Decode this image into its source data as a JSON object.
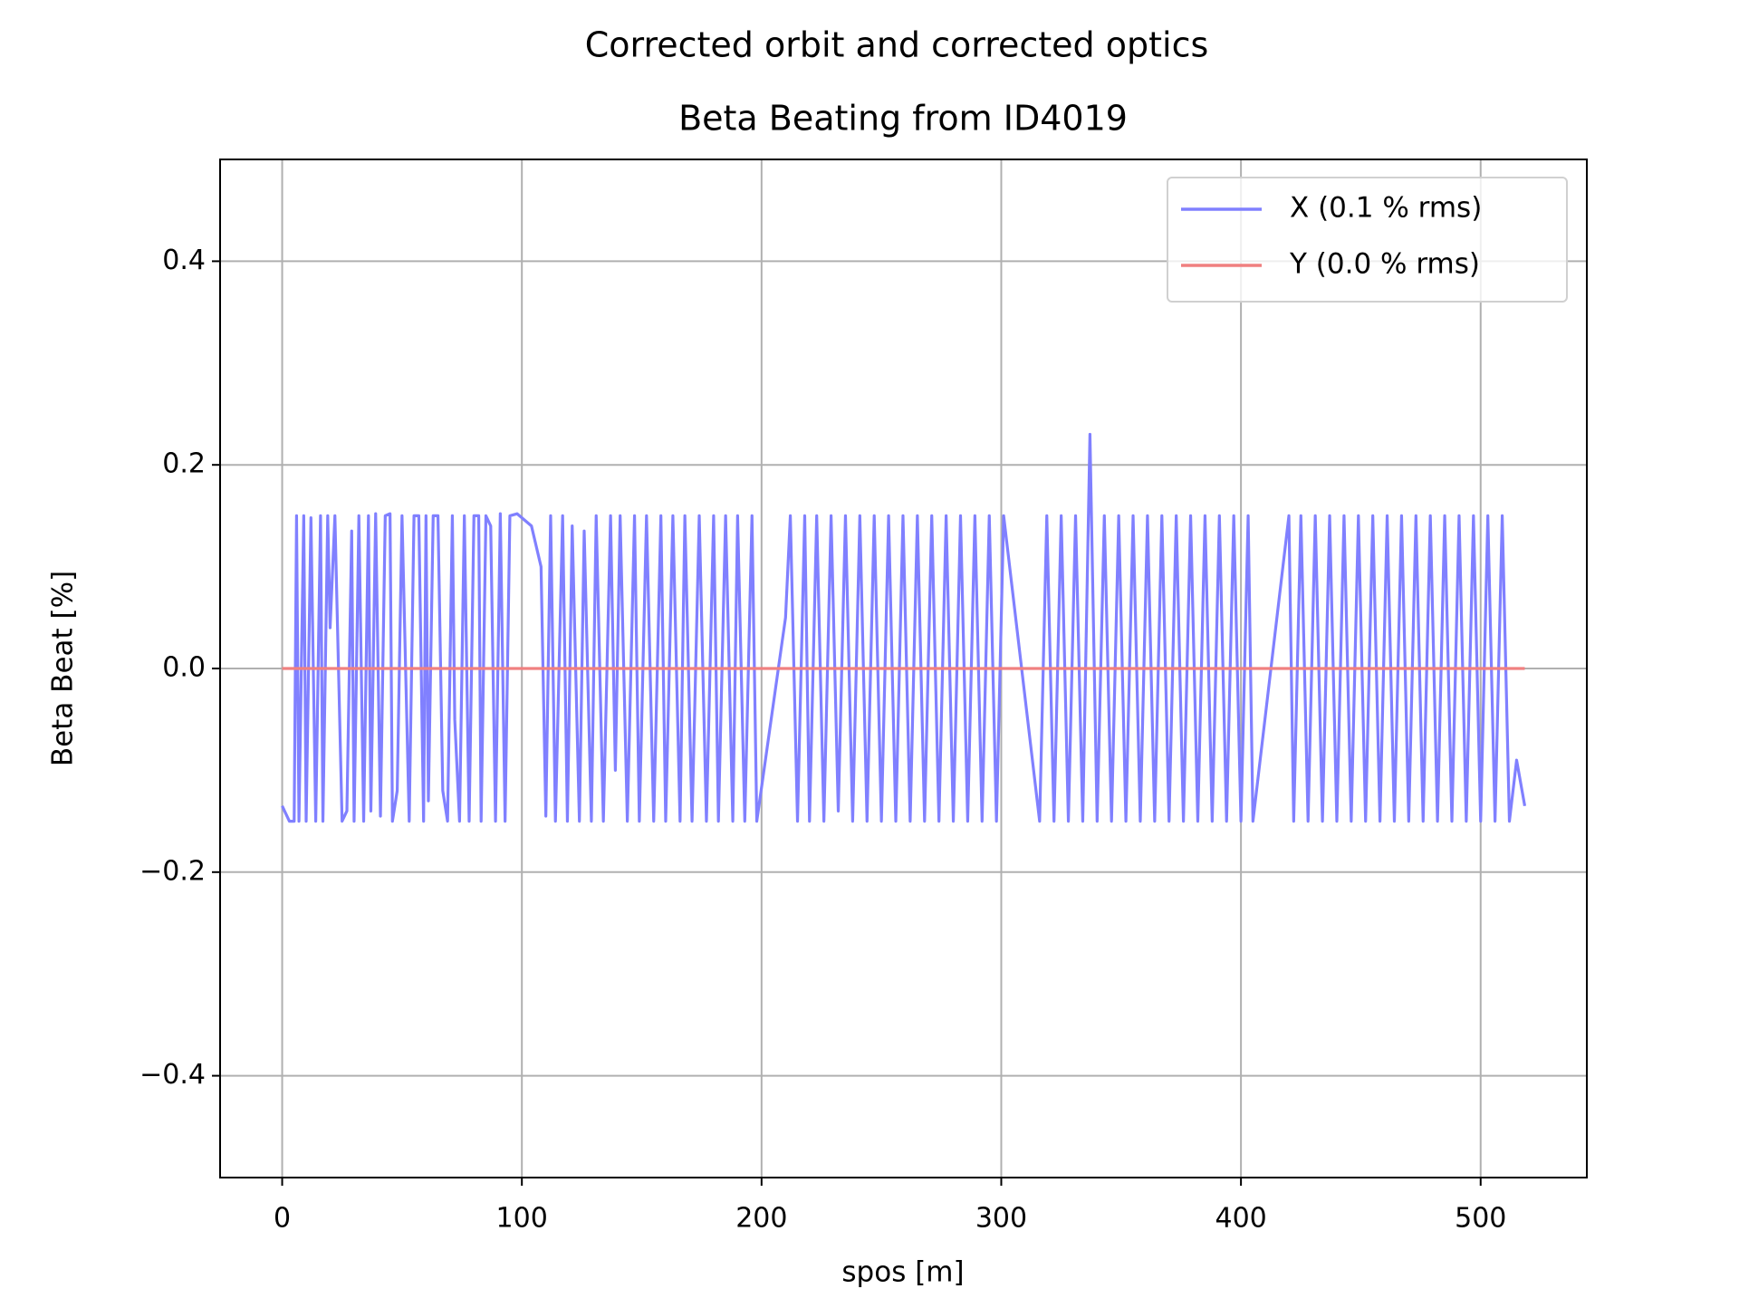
{
  "chart_data": {
    "type": "line",
    "title": "Corrected orbit and corrected optics",
    "subtitle": "Beta Beating from ID4019",
    "x_label": "spos [m]",
    "y_label": "Beta Beat [%]",
    "xlim": [
      -25.9,
      544.3
    ],
    "ylim": [
      -0.5,
      0.5
    ],
    "xticks": [
      0,
      100,
      200,
      300,
      400,
      500
    ],
    "yticks": [
      {
        "value": -0.4,
        "label": "−0.4"
      },
      {
        "value": -0.2,
        "label": "−0.2"
      },
      {
        "value": 0,
        "label": "0.0"
      },
      0.2,
      0.4
    ],
    "grid": true,
    "legend": "upper right",
    "series": [
      {
        "name": "X (0.1 % rms)",
        "color": "#8080ff",
        "x": [
          0,
          3,
          5,
          6,
          7,
          9,
          10,
          12,
          14,
          16,
          17,
          19,
          20,
          22,
          25,
          27,
          29,
          30,
          32,
          34,
          36,
          37,
          39,
          41,
          43,
          45,
          46,
          48,
          50,
          53,
          55,
          57,
          59,
          60,
          61,
          63,
          65,
          67,
          69,
          71,
          72,
          74,
          76,
          78,
          80,
          82,
          83,
          85,
          87,
          89,
          91,
          93,
          95,
          98,
          104,
          108,
          110,
          112,
          114,
          117,
          119,
          121,
          124,
          126,
          129,
          131,
          134,
          137,
          139,
          141,
          144,
          147,
          149,
          152,
          155,
          158,
          160,
          163,
          166,
          168,
          171,
          174,
          177,
          180,
          182,
          185,
          188,
          190,
          193,
          196,
          198,
          210,
          212,
          215,
          218,
          220,
          223,
          226,
          229,
          232,
          235,
          238,
          241,
          244,
          247,
          250,
          253,
          256,
          259,
          262,
          265,
          268,
          271,
          274,
          277,
          280,
          283,
          286,
          289,
          292,
          295,
          298,
          301,
          316,
          319,
          322,
          325,
          328,
          331,
          334,
          337,
          340,
          343,
          346,
          349,
          352,
          355,
          358,
          361,
          364,
          367,
          370,
          373,
          376,
          379,
          382,
          385,
          388,
          391,
          394,
          397,
          400,
          403,
          405,
          420,
          422,
          425,
          428,
          431,
          434,
          437,
          440,
          443,
          446,
          449,
          452,
          455,
          458,
          461,
          464,
          467,
          470,
          473,
          476,
          479,
          482,
          485,
          488,
          491,
          494,
          497,
          500,
          503,
          506,
          509,
          512,
          515,
          518.4
        ],
        "values": [
          -0.135,
          -0.15,
          -0.15,
          0.15,
          -0.15,
          0.15,
          -0.15,
          0.148,
          -0.15,
          0.15,
          -0.15,
          0.15,
          0.04,
          0.15,
          -0.15,
          -0.14,
          0.135,
          -0.15,
          0.15,
          -0.15,
          0.15,
          -0.14,
          0.152,
          -0.145,
          0.15,
          0.152,
          -0.15,
          -0.12,
          0.15,
          -0.15,
          0.15,
          0.15,
          -0.15,
          0.15,
          -0.13,
          0.15,
          0.15,
          -0.12,
          -0.15,
          0.15,
          -0.05,
          -0.15,
          0.15,
          -0.15,
          0.15,
          0.15,
          -0.15,
          0.15,
          0.14,
          -0.15,
          0.152,
          -0.15,
          0.15,
          0.152,
          0.14,
          0.1,
          -0.145,
          0.15,
          -0.15,
          0.15,
          -0.15,
          0.14,
          -0.15,
          0.135,
          -0.15,
          0.15,
          -0.15,
          0.15,
          -0.1,
          0.15,
          -0.15,
          0.15,
          -0.15,
          0.15,
          -0.15,
          0.15,
          -0.15,
          0.15,
          -0.15,
          0.15,
          -0.15,
          0.15,
          -0.15,
          0.15,
          -0.15,
          0.15,
          -0.15,
          0.15,
          -0.15,
          0.15,
          -0.15,
          0.05,
          0.15,
          -0.15,
          0.15,
          -0.15,
          0.15,
          -0.15,
          0.15,
          -0.14,
          0.15,
          -0.15,
          0.15,
          -0.15,
          0.15,
          -0.15,
          0.15,
          -0.15,
          0.15,
          -0.15,
          0.15,
          -0.15,
          0.15,
          -0.15,
          0.15,
          -0.15,
          0.15,
          -0.15,
          0.15,
          -0.15,
          0.15,
          -0.15,
          0.15,
          -0.15,
          0.15,
          -0.15,
          0.15,
          -0.15,
          0.15,
          -0.15,
          0.23,
          -0.15,
          0.15,
          -0.15,
          0.15,
          -0.15,
          0.15,
          -0.15,
          0.15,
          -0.15,
          0.15,
          -0.15,
          0.15,
          -0.15,
          0.15,
          -0.15,
          0.15,
          -0.15,
          0.15,
          -0.15,
          0.15,
          -0.15,
          0.15,
          -0.15,
          0.15,
          -0.15,
          0.15,
          -0.15,
          0.15,
          -0.15,
          0.15,
          -0.15,
          0.15,
          -0.15,
          0.15,
          -0.15,
          0.15,
          -0.15,
          0.15,
          -0.15,
          0.15,
          -0.15,
          0.15,
          -0.15,
          0.15,
          -0.15,
          0.15,
          -0.15,
          0.15,
          -0.15,
          0.15,
          -0.15,
          0.15,
          -0.15,
          0.15,
          -0.15,
          -0.09,
          -0.135
        ]
      },
      {
        "name": "Y (0.0 % rms)",
        "color": "#f08080",
        "x": [
          0,
          518.4
        ],
        "values": [
          0,
          0
        ]
      }
    ]
  }
}
